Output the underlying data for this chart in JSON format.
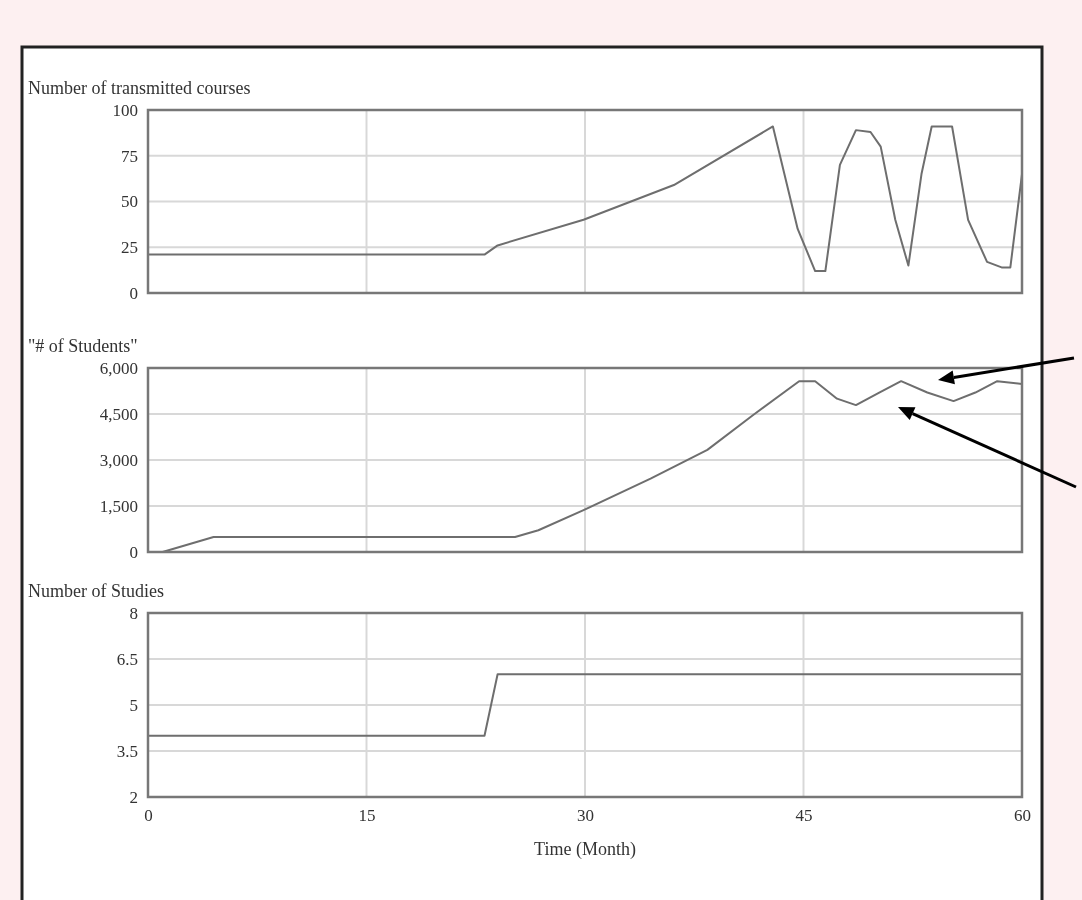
{
  "chart_data": [
    {
      "type": "line",
      "title": "Number of transmitted courses",
      "xlim": [
        0,
        60
      ],
      "xticks": [
        0,
        15,
        30,
        45,
        60
      ],
      "ylim": [
        0,
        100
      ],
      "yticks": [
        0,
        25,
        50,
        75,
        100
      ],
      "grid": true,
      "tick_labels": "y",
      "series": [
        {
          "color": "#6e6e6e",
          "x": [
            0,
            23.1,
            24,
            29.9,
            36.1,
            42.9,
            44.6,
            45.8,
            46.5,
            47.5,
            48.6,
            49.6,
            50.3,
            51.3,
            52.2,
            53.1,
            53.8,
            55.2,
            56.3,
            57.6,
            58.6,
            59.2,
            60
          ],
          "values": [
            21,
            21,
            26,
            40,
            59,
            91,
            35,
            12,
            12,
            70,
            89,
            88,
            80,
            40,
            15,
            65,
            91,
            91,
            40,
            17,
            14,
            14,
            65
          ]
        }
      ]
    },
    {
      "type": "line",
      "title": "\"# of Students\"",
      "xlim": [
        0,
        60
      ],
      "xticks": [
        0,
        15,
        30,
        45,
        60
      ],
      "ylim": [
        0,
        6000
      ],
      "yticks": [
        0,
        {
          "value": 1500,
          "label": "1,500"
        },
        {
          "value": 3000,
          "label": "3,000"
        },
        {
          "value": 4500,
          "label": "4,500"
        },
        {
          "value": 6000,
          "label": "6,000"
        }
      ],
      "grid": true,
      "tick_labels": "y",
      "series": [
        {
          "color": "#6e6e6e",
          "x": [
            0,
            1,
            4.5,
            25.2,
            26.8,
            29.9,
            34.5,
            38.4,
            41.5,
            44.7,
            45.8,
            47.3,
            48.6,
            50.2,
            51.7,
            53.5,
            55.3,
            56.8,
            58.3,
            60
          ],
          "values": [
            0,
            0,
            490,
            490,
            710,
            1365,
            2390,
            3330,
            4450,
            5570,
            5570,
            5000,
            4790,
            5200,
            5570,
            5200,
            4920,
            5200,
            5570,
            5480
          ]
        }
      ]
    },
    {
      "type": "line",
      "title": "Number of Studies",
      "xlabel": "Time (Month)",
      "xlim": [
        0,
        60
      ],
      "xticks": [
        0,
        15,
        30,
        45,
        60
      ],
      "ylim": [
        2,
        8
      ],
      "yticks": [
        2,
        3.5,
        5,
        6.5,
        8
      ],
      "grid": true,
      "series": [
        {
          "color": "#6e6e6e",
          "x": [
            0,
            23.1,
            24,
            60
          ],
          "values": [
            4,
            4,
            6,
            6
          ]
        }
      ]
    }
  ]
}
